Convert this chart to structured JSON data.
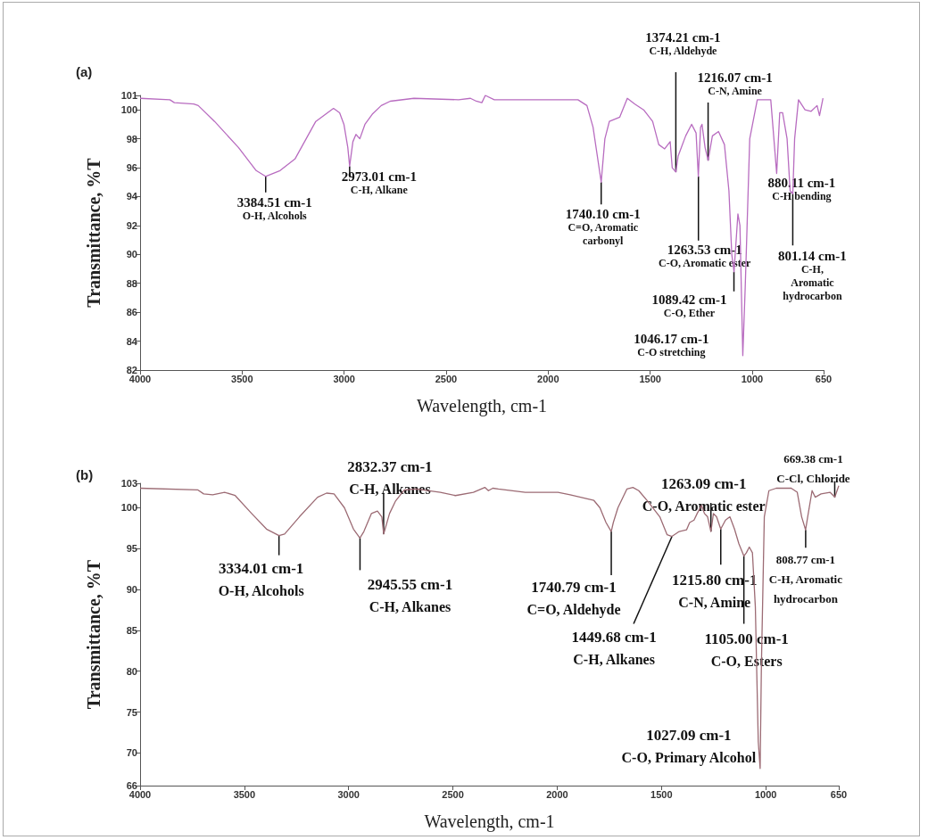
{
  "chart_data": [
    {
      "type": "line",
      "title": "(a)",
      "xlabel": "Wavelength, cm-1",
      "ylabel": "Transmittance, %T",
      "xlim": [
        4000,
        650
      ],
      "xticks": [
        4000,
        3500,
        3000,
        2500,
        2000,
        1500,
        1000,
        650
      ],
      "ylim": [
        82,
        101
      ],
      "yticks": [
        82,
        84,
        86,
        88,
        90,
        92,
        94,
        96,
        98,
        100,
        101
      ],
      "grid": false,
      "marker": "none",
      "x": [
        4000,
        3854,
        3832,
        3737,
        3715,
        3635,
        3518,
        3431,
        3385,
        3314,
        3241,
        3139,
        3052,
        3022,
        3001,
        2982,
        2973,
        2957,
        2942,
        2923,
        2898,
        2862,
        2818,
        2774,
        2658,
        2439,
        2381,
        2352,
        2325,
        2308,
        2264,
        1854,
        1810,
        1780,
        1740,
        1722,
        1700,
        1649,
        1612,
        1575,
        1532,
        1488,
        1458,
        1429,
        1402,
        1392,
        1374,
        1363,
        1326,
        1297,
        1275,
        1264,
        1253,
        1246,
        1231,
        1216,
        1195,
        1165,
        1136,
        1114,
        1100,
        1089,
        1070,
        1060,
        1046,
        1034,
        1012,
        975,
        909,
        880,
        865,
        851,
        829,
        814,
        801,
        792,
        773,
        741,
        711,
        682,
        670,
        653
      ],
      "series": [
        {
          "color": "#b86cc0",
          "values": [
            100.8,
            100.7,
            100.5,
            100.4,
            100.3,
            99.2,
            97.4,
            95.8,
            95.4,
            95.8,
            96.6,
            99.2,
            100.1,
            99.8,
            99.0,
            97.4,
            96.1,
            97.8,
            98.3,
            98.0,
            99.0,
            99.7,
            100.3,
            100.6,
            100.8,
            100.7,
            100.8,
            100.6,
            100.5,
            101.0,
            100.7,
            100.7,
            100.3,
            98.8,
            95.0,
            98.0,
            99.2,
            99.5,
            100.8,
            100.4,
            100.0,
            99.2,
            97.6,
            97.3,
            97.8,
            96.0,
            95.7,
            96.8,
            98.2,
            99.0,
            98.4,
            95.4,
            98.8,
            99.0,
            97.4,
            96.5,
            98.2,
            98.5,
            97.6,
            94.4,
            90.0,
            88.8,
            92.8,
            92.0,
            83.0,
            87.8,
            98.0,
            100.7,
            100.7,
            95.6,
            99.8,
            99.8,
            98.0,
            94.4,
            94.2,
            98.0,
            100.7,
            100.0,
            99.9,
            100.3,
            99.6,
            100.8
          ]
        }
      ],
      "annotations": [
        {
          "text": "3384.51 cm-1\nO-H, Alcohols",
          "x": 3384.51,
          "y": 95.4
        },
        {
          "text": "2973.01 cm-1\nC-H, Alkane",
          "x": 2973.01,
          "y": 96.1
        },
        {
          "text": "1740.10 cm-1\nC=O, Aromatic\ncarbonyl",
          "x": 1740.1,
          "y": 95.0
        },
        {
          "text": "1374.21 cm-1\nC-H, Aldehyde",
          "x": 1374.21,
          "y": 95.7
        },
        {
          "text": "1263.53 cm-1\nC-O, Aromatic ester",
          "x": 1263.53,
          "y": 95.4
        },
        {
          "text": "1216.07 cm-1\nC-N, Amine",
          "x": 1216.07,
          "y": 96.5
        },
        {
          "text": "1089.42 cm-1\nC-O, Ether",
          "x": 1089.42,
          "y": 88.8
        },
        {
          "text": "1046.17 cm-1\nC-O stretching",
          "x": 1046.17,
          "y": 83.0
        },
        {
          "text": "880.11 cm-1\nC-H bending",
          "x": 880.11,
          "y": 95.6
        },
        {
          "text": "801.14 cm-1\nC-H,\nAromatic\nhydrocarbon",
          "x": 801.14,
          "y": 94.2
        }
      ]
    },
    {
      "type": "line",
      "title": "(b)",
      "xlabel": "Wavelength, cm-1",
      "ylabel": "Transmittance, %T",
      "xlim": [
        4000,
        650
      ],
      "xticks": [
        4000,
        3500,
        3000,
        2500,
        2000,
        1500,
        1000,
        650
      ],
      "ylim": [
        66,
        103
      ],
      "yticks": [
        66,
        70,
        75,
        80,
        85,
        90,
        95,
        100,
        103
      ],
      "grid": false,
      "marker": "none",
      "x": [
        4000,
        3724,
        3695,
        3652,
        3595,
        3544,
        3465,
        3394,
        3334,
        3307,
        3236,
        3149,
        3106,
        3070,
        3020,
        2977,
        2946,
        2927,
        2891,
        2862,
        2841,
        2832,
        2804,
        2776,
        2733,
        2675,
        2560,
        2488,
        2402,
        2347,
        2330,
        2309,
        2282,
        2153,
        1996,
        1938,
        1824,
        1795,
        1766,
        1741,
        1731,
        1709,
        1666,
        1637,
        1609,
        1566,
        1508,
        1473,
        1450,
        1415,
        1380,
        1365,
        1344,
        1329,
        1308,
        1294,
        1279,
        1263,
        1251,
        1236,
        1216,
        1193,
        1172,
        1150,
        1129,
        1105,
        1093,
        1079,
        1064,
        1050,
        1036,
        1027,
        1021,
        1007,
        985,
        950,
        878,
        849,
        828,
        809,
        799,
        778,
        763,
        735,
        692,
        669,
        650
      ],
      "series": [
        {
          "color": "#9c6b74",
          "values": [
            102.4,
            102.2,
            101.7,
            101.6,
            101.9,
            101.5,
            99.3,
            97.4,
            96.6,
            96.8,
            98.9,
            101.3,
            101.8,
            101.7,
            100.0,
            97.4,
            96.3,
            97.1,
            99.3,
            99.6,
            98.9,
            96.8,
            99.3,
            100.8,
            102.2,
            102.3,
            101.9,
            101.5,
            101.9,
            102.5,
            102.1,
            102.4,
            102.3,
            101.9,
            101.9,
            101.6,
            100.9,
            100.0,
            98.2,
            97.1,
            98.2,
            100.0,
            102.3,
            102.5,
            102.1,
            100.8,
            98.9,
            96.7,
            96.5,
            97.1,
            97.3,
            98.2,
            98.5,
            99.3,
            100.3,
            99.3,
            98.9,
            97.1,
            99.3,
            98.9,
            97.4,
            98.5,
            98.9,
            97.4,
            95.6,
            94.1,
            94.5,
            95.2,
            94.5,
            87.9,
            71.4,
            68.1,
            80.6,
            98.9,
            102.1,
            102.4,
            102.4,
            101.9,
            98.9,
            97.3,
            98.9,
            102.1,
            101.3,
            101.7,
            101.9,
            101.3,
            102.7
          ]
        }
      ],
      "annotations": [
        {
          "text": "3334.01 cm-1\nO-H, Alcohols",
          "x": 3334.01,
          "y": 96.6
        },
        {
          "text": "2945.55 cm-1\nC-H, Alkanes",
          "x": 2945.55,
          "y": 96.3
        },
        {
          "text": "2832.37 cm-1\nC-H, Alkanes",
          "x": 2832.37,
          "y": 96.8
        },
        {
          "text": "1740.79 cm-1\nC=O, Aldehyde",
          "x": 1740.79,
          "y": 97.1
        },
        {
          "text": "1449.68 cm-1\nC-H, Alkanes",
          "x": 1449.68,
          "y": 96.5
        },
        {
          "text": "1263.09 cm-1\nC-O, Aromatic ester",
          "x": 1263.09,
          "y": 97.1
        },
        {
          "text": "1215.80 cm-1\nC-N, Amine",
          "x": 1215.8,
          "y": 97.4
        },
        {
          "text": "1105.00 cm-1\nC-O, Esters",
          "x": 1105.0,
          "y": 94.1
        },
        {
          "text": "1027.09 cm-1\nC-O, Primary Alcohol",
          "x": 1027.09,
          "y": 68.1
        },
        {
          "text": "808.77 cm-1\nC-H, Aromatic\nhydrocarbon",
          "x": 808.77,
          "y": 97.3
        },
        {
          "text": "669.38 cm-1\nC-Cl, Chloride",
          "x": 669.38,
          "y": 101.3
        }
      ]
    }
  ]
}
